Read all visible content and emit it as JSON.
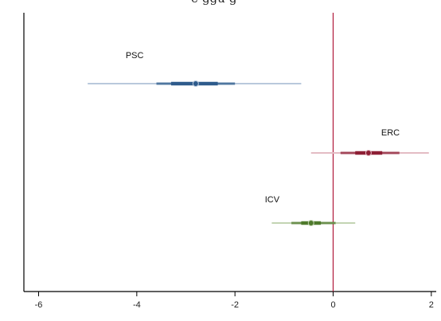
{
  "page": {
    "title_fragment": "e-ggu-g"
  },
  "chart_data": {
    "type": "scatter",
    "title": "",
    "xlabel": "",
    "ylabel": "",
    "xlim": [
      -6.3,
      2.1
    ],
    "xticks": [
      -6,
      -4,
      -2,
      0,
      2
    ],
    "x_tick_labels": [
      "-6",
      "-4",
      "-2",
      "0",
      "2"
    ],
    "reference_line_x": 0,
    "reference_line_color": "#b0183a",
    "grid": false,
    "legend": "none",
    "series": [
      {
        "name": "PSC",
        "estimate": -2.8,
        "ci95": [
          -5.0,
          -0.65
        ],
        "ci90": [
          -3.6,
          -2.0
        ],
        "ci50": [
          -3.3,
          -2.35
        ],
        "row": 1,
        "color": "#2e5b8c",
        "light_color": "#b9c9dc",
        "label": "PSC"
      },
      {
        "name": "ERC",
        "estimate": 0.72,
        "ci95": [
          -0.45,
          1.95
        ],
        "ci90": [
          0.15,
          1.35
        ],
        "ci50": [
          0.45,
          1.0
        ],
        "row": 2,
        "color": "#8e1f35",
        "light_color": "#e3bcc4",
        "label": "ERC"
      },
      {
        "name": "ICV",
        "estimate": -0.45,
        "ci95": [
          -1.25,
          0.45
        ],
        "ci90": [
          -0.85,
          0.05
        ],
        "ci50": [
          -0.65,
          -0.25
        ],
        "row": 3,
        "color": "#4f7a2c",
        "light_color": "#c3d4b3",
        "label": "ICV"
      }
    ]
  }
}
